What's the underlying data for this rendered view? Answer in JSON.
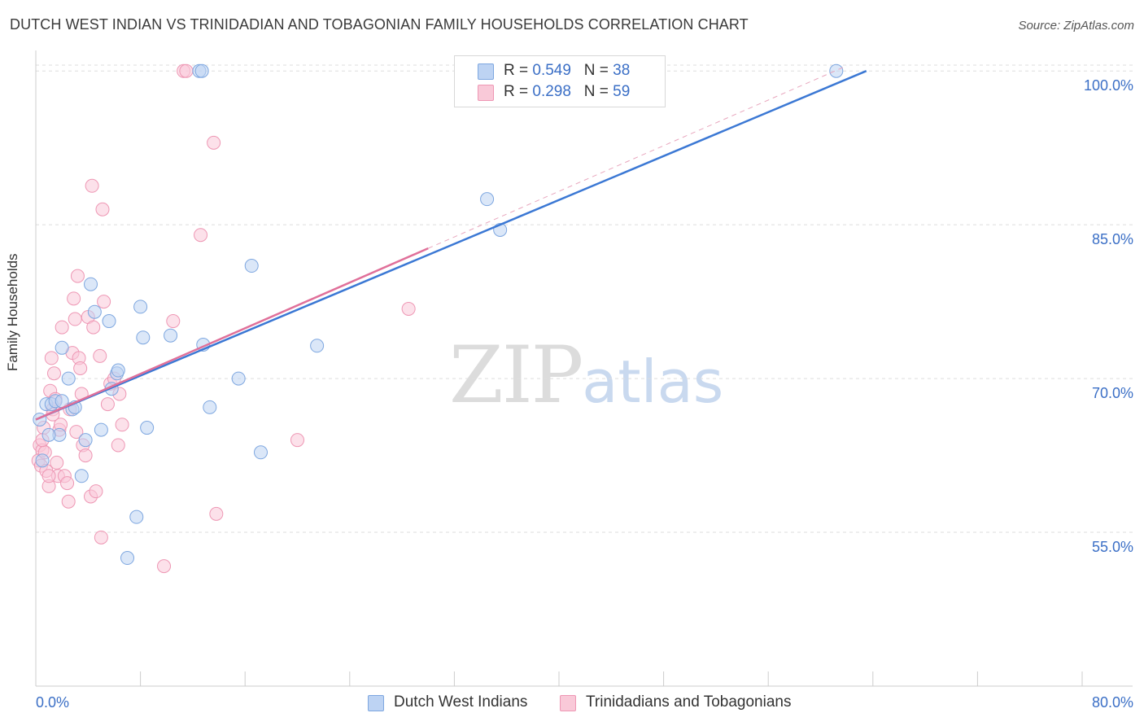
{
  "header": {
    "title": "DUTCH WEST INDIAN VS TRINIDADIAN AND TOBAGONIAN FAMILY HOUSEHOLDS CORRELATION CHART",
    "source": "Source: ZipAtlas.com"
  },
  "watermark": {
    "zip": "ZIP",
    "atlas": "atlas"
  },
  "legend": {
    "series1": {
      "r_label": "R =",
      "r_value": "0.549",
      "n_label": "N =",
      "n_value": "38"
    },
    "series2": {
      "r_label": "R =",
      "r_value": "0.298",
      "n_label": "N =",
      "n_value": "59"
    }
  },
  "colors": {
    "blue_fill": "#bdd3f3",
    "blue_stroke": "#7ea7e0",
    "blue_line": "#3b78d4",
    "pink_fill": "#f9c9d8",
    "pink_stroke": "#ee97b4",
    "pink_line": "#e0709a",
    "tick_color": "#3b6fc6",
    "grid": "#dddddd"
  },
  "chart_data": {
    "type": "scatter",
    "title": "DUTCH WEST INDIAN VS TRINIDADIAN AND TOBAGONIAN FAMILY HOUSEHOLDS CORRELATION CHART",
    "xlabel": "",
    "ylabel": "Family Households",
    "xlim": [
      0,
      80
    ],
    "ylim": [
      40,
      102
    ],
    "x_tick_labels": [
      "0.0%",
      "80.0%"
    ],
    "y_ticks": [
      55,
      70,
      85,
      100
    ],
    "y_tick_labels": [
      "55.0%",
      "70.0%",
      "85.0%",
      "100.0%"
    ],
    "grid": true,
    "series": [
      {
        "name": "Dutch West Indians",
        "r": 0.549,
        "n": 38,
        "trend": {
          "x": [
            0,
            63.5
          ],
          "y": [
            66.0,
            100.0
          ]
        },
        "points": [
          [
            0.3,
            66.0
          ],
          [
            0.5,
            62.0
          ],
          [
            0.8,
            67.5
          ],
          [
            1.2,
            67.5
          ],
          [
            1.5,
            67.8
          ],
          [
            1.8,
            64.5
          ],
          [
            2.0,
            73.0
          ],
          [
            2.5,
            70.0
          ],
          [
            2.8,
            67.0
          ],
          [
            3.0,
            67.2
          ],
          [
            3.5,
            60.5
          ],
          [
            3.8,
            64.0
          ],
          [
            4.2,
            79.2
          ],
          [
            4.5,
            76.5
          ],
          [
            5.0,
            65.0
          ],
          [
            5.6,
            75.6
          ],
          [
            5.8,
            69.0
          ],
          [
            6.2,
            70.5
          ],
          [
            6.3,
            70.8
          ],
          [
            7.0,
            52.5
          ],
          [
            7.7,
            56.5
          ],
          [
            8.0,
            77.0
          ],
          [
            8.2,
            74.0
          ],
          [
            8.5,
            65.2
          ],
          [
            10.3,
            74.2
          ],
          [
            12.5,
            100.0
          ],
          [
            12.7,
            100.0
          ],
          [
            12.8,
            73.3
          ],
          [
            13.3,
            67.2
          ],
          [
            15.5,
            70.0
          ],
          [
            16.5,
            81.0
          ],
          [
            17.2,
            62.8
          ],
          [
            21.5,
            73.2
          ],
          [
            34.5,
            87.5
          ],
          [
            35.5,
            84.5
          ],
          [
            61.2,
            100.0
          ],
          [
            2.0,
            67.8
          ],
          [
            1.0,
            64.5
          ]
        ]
      },
      {
        "name": "Trinidadians and Tobagonians",
        "r": 0.298,
        "n": 59,
        "trend": {
          "x": [
            0,
            30.0
          ],
          "y": [
            66.0,
            82.7
          ]
        },
        "trend_extension": {
          "x": [
            30.0,
            62.0
          ],
          "y": [
            82.7,
            100.5
          ]
        },
        "points": [
          [
            0.2,
            62.0
          ],
          [
            0.3,
            63.5
          ],
          [
            0.4,
            61.5
          ],
          [
            0.5,
            63.0
          ],
          [
            0.6,
            65.2
          ],
          [
            0.7,
            62.8
          ],
          [
            0.8,
            61.0
          ],
          [
            1.0,
            59.5
          ],
          [
            1.1,
            68.8
          ],
          [
            1.2,
            72.0
          ],
          [
            1.3,
            67.0
          ],
          [
            1.4,
            70.5
          ],
          [
            1.5,
            68.0
          ],
          [
            1.6,
            61.8
          ],
          [
            1.7,
            60.5
          ],
          [
            1.8,
            65.0
          ],
          [
            1.9,
            65.5
          ],
          [
            2.0,
            75.0
          ],
          [
            2.2,
            60.5
          ],
          [
            2.4,
            59.8
          ],
          [
            2.5,
            58.0
          ],
          [
            2.8,
            72.5
          ],
          [
            2.9,
            77.8
          ],
          [
            3.0,
            75.8
          ],
          [
            3.1,
            64.8
          ],
          [
            3.2,
            80.0
          ],
          [
            3.3,
            72.0
          ],
          [
            3.4,
            71.0
          ],
          [
            3.5,
            68.5
          ],
          [
            3.6,
            63.5
          ],
          [
            3.8,
            62.5
          ],
          [
            4.0,
            76.0
          ],
          [
            4.2,
            58.5
          ],
          [
            4.3,
            88.8
          ],
          [
            4.4,
            75.0
          ],
          [
            4.6,
            59.0
          ],
          [
            4.9,
            72.2
          ],
          [
            5.1,
            86.5
          ],
          [
            5.0,
            54.5
          ],
          [
            5.2,
            77.5
          ],
          [
            5.5,
            67.5
          ],
          [
            5.7,
            69.5
          ],
          [
            6.0,
            70.0
          ],
          [
            6.3,
            63.5
          ],
          [
            6.4,
            68.5
          ],
          [
            6.6,
            65.5
          ],
          [
            9.8,
            51.7
          ],
          [
            10.5,
            75.6
          ],
          [
            11.3,
            100.0
          ],
          [
            11.5,
            100.0
          ],
          [
            12.6,
            84.0
          ],
          [
            13.6,
            93.0
          ],
          [
            13.8,
            56.8
          ],
          [
            20.0,
            64.0
          ],
          [
            28.5,
            76.8
          ],
          [
            0.5,
            64.0
          ],
          [
            1.0,
            60.5
          ],
          [
            2.6,
            67.0
          ],
          [
            1.3,
            66.5
          ]
        ]
      }
    ]
  }
}
